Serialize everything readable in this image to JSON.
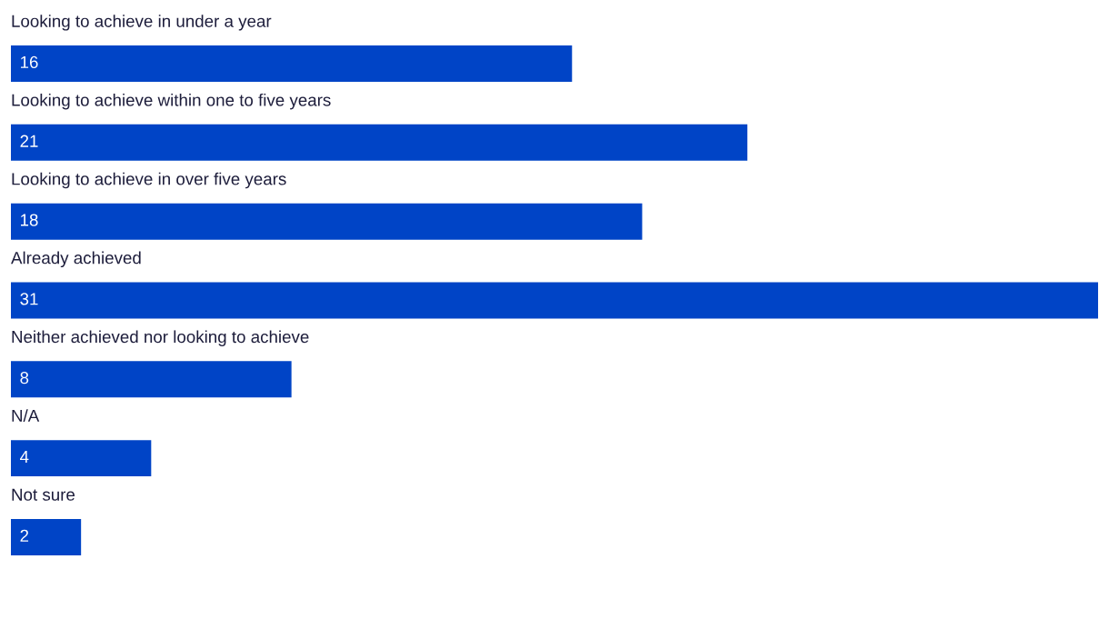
{
  "chart_data": {
    "type": "bar",
    "orientation": "horizontal",
    "categories": [
      "Looking to achieve in under a year",
      "Looking to achieve within one to five years",
      "Looking to achieve in over five years",
      "Already achieved",
      "Neither achieved nor looking to achieve",
      "N/A",
      "Not sure"
    ],
    "values": [
      16,
      21,
      18,
      31,
      8,
      4,
      2
    ],
    "color": "#0044c6",
    "data_labels": true
  }
}
